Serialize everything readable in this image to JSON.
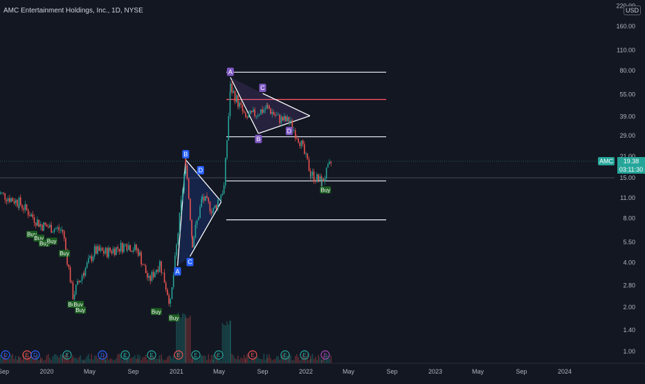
{
  "header": {
    "symbol_title": "AMC Entertainment Holdings, Inc., 1D, NYSE",
    "currency": "USD"
  },
  "price_tag": {
    "ticker": "AMC",
    "last_price": "19.38",
    "countdown": "03:11:30",
    "color": "#26a69a"
  },
  "colors": {
    "background": "#131722",
    "up_candle": "#26a69a",
    "down_candle": "#ef5350",
    "pattern_blue": "#2962ff",
    "pattern_purple": "#7e57c2",
    "resistance_red": "#f7525f",
    "buy_label": "#1b5e20"
  },
  "chart_data": {
    "type": "candlestick",
    "y_axis_scale": "log",
    "y_ticks": [
      "220.00",
      "160.00",
      "110.00",
      "80.00",
      "55.00",
      "39.00",
      "29.00",
      "21.00",
      "15.00",
      "11.00",
      "8.00",
      "5.50",
      "4.00",
      "2.80",
      "2.00",
      "1.40",
      "1.00"
    ],
    "x_ticks": [
      "Sep",
      "2020",
      "May",
      "Sep",
      "2021",
      "May",
      "Sep",
      "2022",
      "May",
      "Sep",
      "2023",
      "May",
      "Sep",
      "2024"
    ],
    "close_series": [
      {
        "date": "2019-08",
        "close": 12.0
      },
      {
        "date": "2019-10",
        "close": 10.2
      },
      {
        "date": "2019-12",
        "close": 7.2
      },
      {
        "date": "2020-02",
        "close": 6.6
      },
      {
        "date": "2020-03",
        "close": 2.4
      },
      {
        "date": "2020-04",
        "close": 3.5
      },
      {
        "date": "2020-05",
        "close": 4.8
      },
      {
        "date": "2020-06",
        "close": 4.7
      },
      {
        "date": "2020-08",
        "close": 5.3
      },
      {
        "date": "2020-09",
        "close": 4.8
      },
      {
        "date": "2020-10",
        "close": 3.0
      },
      {
        "date": "2020-11",
        "close": 4.0
      },
      {
        "date": "2020-12",
        "close": 2.1
      },
      {
        "date": "2021-01-27",
        "close": 19.9
      },
      {
        "date": "2021-02",
        "close": 5.5
      },
      {
        "date": "2021-03",
        "close": 11.0
      },
      {
        "date": "2021-04",
        "close": 9.0
      },
      {
        "date": "2021-05",
        "close": 13.0
      },
      {
        "date": "2021-06-02",
        "close": 62.0
      },
      {
        "date": "2021-07",
        "close": 38.0
      },
      {
        "date": "2021-09",
        "close": 45.0
      },
      {
        "date": "2021-10",
        "close": 38.0
      },
      {
        "date": "2021-11",
        "close": 36.0
      },
      {
        "date": "2021-12",
        "close": 27.0
      },
      {
        "date": "2022-01",
        "close": 16.0
      },
      {
        "date": "2022-02",
        "close": 14.0
      },
      {
        "date": "2022-03",
        "close": 19.38
      }
    ],
    "horizontal_levels": [
      {
        "price": 78.0,
        "color": "white"
      },
      {
        "price": 51.0,
        "color": "red"
      },
      {
        "price": 28.5,
        "color": "white"
      },
      {
        "price": 14.3,
        "color": "white"
      },
      {
        "price": 7.8,
        "color": "white"
      }
    ],
    "pattern_labels": [
      {
        "label": "A",
        "group": "blue",
        "date": "2021-01-04",
        "price": 3.8
      },
      {
        "label": "B",
        "group": "blue",
        "date": "2021-01-27",
        "price": 19.9
      },
      {
        "label": "C",
        "group": "blue",
        "date": "2021-02-08",
        "price": 4.4
      },
      {
        "label": "D",
        "group": "blue",
        "date": "2021-03-10",
        "price": 15.5
      },
      {
        "label": "A",
        "group": "purple",
        "date": "2021-06-02",
        "price": 72.0
      },
      {
        "label": "B",
        "group": "purple",
        "date": "2021-08-20",
        "price": 30.0
      },
      {
        "label": "C",
        "group": "purple",
        "date": "2021-09-01",
        "price": 56.0
      },
      {
        "label": "D",
        "group": "purple",
        "date": "2021-11-15",
        "price": 34.0
      }
    ],
    "buy_signals": [
      {
        "label": "Buy",
        "date": "2019-11-20",
        "price": 7.0
      },
      {
        "label": "Buy",
        "date": "2019-12-10",
        "price": 6.6
      },
      {
        "label": "Buy",
        "date": "2019-12-25",
        "price": 6.1
      },
      {
        "label": "Buy",
        "date": "2020-01-15",
        "price": 6.3
      },
      {
        "label": "Buy",
        "date": "2020-02-20",
        "price": 5.2
      },
      {
        "label": "Buy",
        "date": "2020-03-15",
        "price": 2.35
      },
      {
        "label": "Buy",
        "date": "2020-03-30",
        "price": 2.35
      },
      {
        "label": "Buy",
        "date": "2020-04-05",
        "price": 2.15
      },
      {
        "label": "Buy",
        "date": "2020-11-05",
        "price": 2.1
      },
      {
        "label": "Buy",
        "date": "2020-12-25",
        "price": 1.9
      },
      {
        "label": "Buy",
        "date": "2022-02-25",
        "price": 14.0
      }
    ],
    "event_markers": [
      "D",
      "E",
      "D",
      "E",
      "D",
      "E",
      "E",
      "E",
      "E",
      "E",
      "E",
      "E",
      "E",
      "E"
    ]
  }
}
